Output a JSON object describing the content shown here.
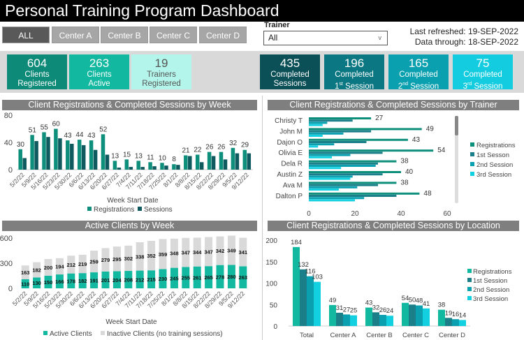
{
  "title": "Personal Training Program Dashboard",
  "filters": {
    "buttons": [
      "ALL",
      "Center A",
      "Center B",
      "Center C",
      "Center D"
    ],
    "active": "ALL"
  },
  "trainer": {
    "label": "Trainer",
    "value": "All"
  },
  "refresh": {
    "last_refreshed": "Last refreshed: 19-SEP-2022",
    "data_through": "Data through: 18-SEP-2022"
  },
  "kpis": [
    {
      "value": "604",
      "line1": "Clients",
      "line2": "Registered",
      "sup": "",
      "color": "#0e8a78",
      "text": "#ffffff"
    },
    {
      "value": "263",
      "line1": "Clients",
      "line2": "Active",
      "sup": "",
      "color": "#12b8a0",
      "text": "#ffffff"
    },
    {
      "value": "19",
      "line1": "Trainers",
      "line2": "Registered",
      "sup": "",
      "color": "#b3f5ea",
      "text": "#555555"
    },
    {
      "value": "435",
      "line1": "Completed",
      "line2": "Sessions",
      "sup": "",
      "color": "#0b4f57",
      "text": "#ffffff"
    },
    {
      "value": "196",
      "line1": "Completed",
      "line2pre": "1",
      "sup": "st",
      "line2": " Session",
      "color": "#0b7782",
      "text": "#ffffff"
    },
    {
      "value": "165",
      "line1": "Completed",
      "line2pre": "2",
      "sup": "nd",
      "line2": " Session",
      "color": "#0aa0b0",
      "text": "#ffffff"
    },
    {
      "value": "75",
      "line1": "Completed",
      "line2pre": "3",
      "sup": "rd",
      "line2": " Session",
      "color": "#14cce0",
      "text": "#ffffff"
    }
  ],
  "sections": {
    "weekly": "Client Registrations & Completed Sessions by Week",
    "trainer": "Client Registrations & Completed Sessions by Trainer",
    "active": "Active Clients by Week",
    "location": "Client Registrations & Completed Sessions by Location"
  },
  "chart_data": [
    {
      "type": "bar",
      "xlabel": "Week Start Date",
      "ylim": [
        0,
        80
      ],
      "yticks": [
        0,
        40,
        80
      ],
      "categories": [
        "5/2/22",
        "5/9/22",
        "5/16/22",
        "5/23/22",
        "5/30/22",
        "6/6/22",
        "6/13/22",
        "6/20/22",
        "6/27/22",
        "7/4/22",
        "7/11/22",
        "7/18/22",
        "7/25/22",
        "8/1/22",
        "8/8/22",
        "8/15/22",
        "8/22/22",
        "8/29/22",
        "9/5/22",
        "9/12/22"
      ],
      "series": [
        {
          "name": "Registrations",
          "color": "#0e8f7c",
          "values": [
            30,
            51,
            55,
            60,
            43,
            44,
            43,
            52,
            13,
            15,
            13,
            11,
            10,
            8,
            21,
            22,
            26,
            26,
            32,
            29
          ],
          "labeled": true
        },
        {
          "name": "Sessions",
          "color": "#0e5a5e",
          "values": [
            17,
            42,
            48,
            46,
            38,
            36,
            29,
            22,
            3,
            4,
            4,
            5,
            6,
            7,
            20,
            11,
            20,
            15,
            24,
            24
          ],
          "labeled": false
        }
      ],
      "legend": "bottom"
    },
    {
      "type": "bar",
      "orientation": "horizontal",
      "xlim": [
        0,
        60
      ],
      "xticks": [
        0,
        20,
        40,
        60
      ],
      "categories": [
        "Christy T",
        "John M",
        "Dajon O",
        "Olivia E",
        "Dela R",
        "Austin Z",
        "Ava M",
        "Dalton P"
      ],
      "series": [
        {
          "name": "Registrations",
          "color": "#0e8f7c",
          "values": [
            27,
            49,
            43,
            54,
            38,
            40,
            38,
            48
          ],
          "labeled": true
        },
        {
          "name": "1st Sesson",
          "color": "#1a7f88",
          "values": [
            19,
            27,
            25,
            32,
            30,
            32,
            30,
            38
          ]
        },
        {
          "name": "2nd Session",
          "color": "#0aa0b0",
          "values": [
            8,
            15,
            11,
            18,
            29,
            19,
            21,
            24
          ]
        },
        {
          "name": "3rd Session",
          "color": "#12d0e0",
          "values": [
            6,
            6,
            4,
            10,
            14,
            18,
            13,
            20
          ]
        }
      ],
      "legend": "right"
    },
    {
      "type": "bar",
      "stacked": true,
      "xlabel": "Week Start Date",
      "ylim": [
        0,
        600
      ],
      "yticks": [
        0,
        300,
        600
      ],
      "categories": [
        "5/2/22",
        "5/9/22",
        "5/16/22",
        "5/23/22",
        "5/30/22",
        "6/6/22",
        "6/13/22",
        "6/20/22",
        "6/27/22",
        "7/4/22",
        "7/11/22",
        "7/18/22",
        "7/25/22",
        "8/1/22",
        "8/8/22",
        "8/15/22",
        "8/22/22",
        "8/29/22",
        "9/5/22",
        "9/12/22"
      ],
      "series": [
        {
          "name": "Active Clients",
          "color": "#12b8a0",
          "values": [
            110,
            130,
            150,
            166,
            178,
            182,
            191,
            201,
            204,
            208,
            212,
            215,
            230,
            245,
            255,
            261,
            265,
            278,
            280,
            263
          ]
        },
        {
          "name": "Inactive Clients (no training sessions)",
          "color": "#d9d9d9",
          "values": [
            163,
            182,
            200,
            194,
            212,
            219,
            259,
            279,
            295,
            302,
            338,
            352,
            359,
            348,
            347,
            344,
            347,
            342,
            349,
            341
          ]
        }
      ],
      "legend": "bottom"
    },
    {
      "type": "bar",
      "ylim": [
        0,
        200
      ],
      "yticks": [
        0,
        50,
        100,
        150,
        200
      ],
      "categories": [
        "Total",
        "Center A",
        "Center B",
        "Center C",
        "Center D"
      ],
      "series": [
        {
          "name": "Registrations",
          "color": "#13b8a0",
          "values": [
            184,
            49,
            43,
            54,
            38
          ]
        },
        {
          "name": "1st Session",
          "color": "#1a7f88",
          "values": [
            132,
            31,
            32,
            50,
            19
          ]
        },
        {
          "name": "2nd Session",
          "color": "#0aa0b0",
          "values": [
            116,
            27,
            26,
            48,
            16
          ]
        },
        {
          "name": "3rd Session",
          "color": "#12d0e0",
          "values": [
            103,
            25,
            24,
            41,
            14
          ]
        }
      ],
      "legend": "right"
    }
  ]
}
